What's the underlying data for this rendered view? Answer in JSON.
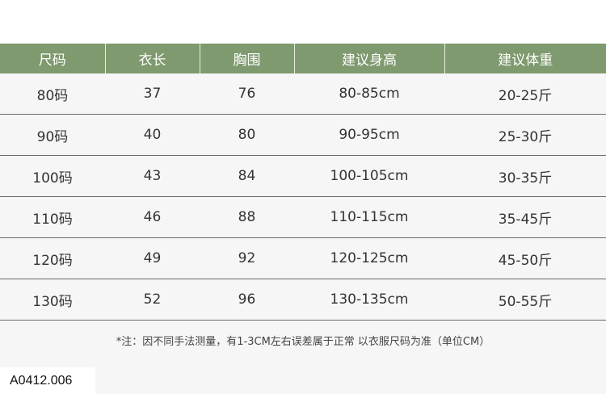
{
  "headers": [
    "尺码",
    "衣长",
    "胸围",
    "建议身高",
    "建议体重"
  ],
  "rows": [
    [
      "80码",
      "37",
      "76",
      "80-85cm",
      "20-25斤"
    ],
    [
      "90码",
      "40",
      "80",
      "90-95cm",
      "25-30斤"
    ],
    [
      "100码",
      "43",
      "84",
      "100-105cm",
      "30-35斤"
    ],
    [
      "110码",
      "46",
      "88",
      "110-115cm",
      "35-45斤"
    ],
    [
      "120码",
      "49",
      "92",
      "120-125cm",
      "45-50斤"
    ],
    [
      "130码",
      "52",
      "96",
      "130-135cm",
      "50-55斤"
    ]
  ],
  "note": "*注：因不同手法测量，有1-3CM左右误差属于正常 以衣服尺码为准（单位CM）",
  "code": "A0412.006",
  "colors": {
    "header_bg": "#7f9a6e"
  }
}
